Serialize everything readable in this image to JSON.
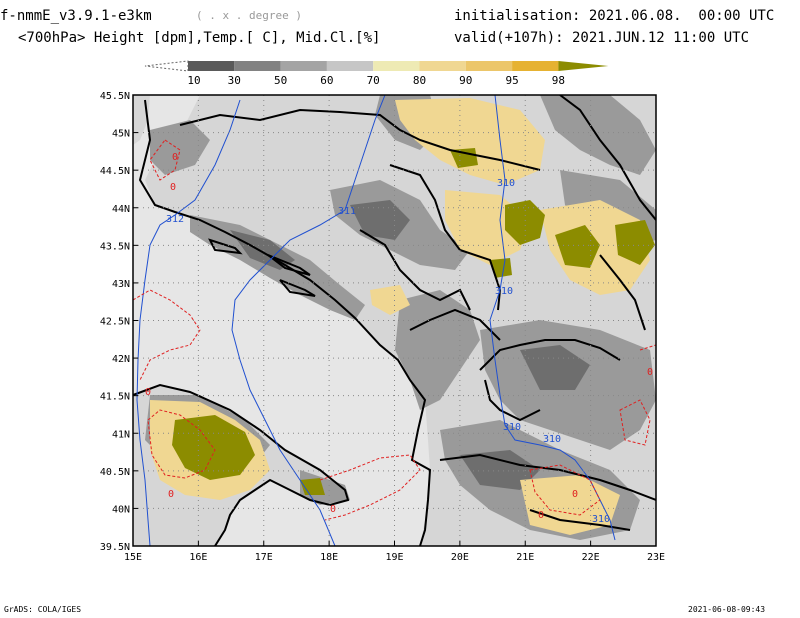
{
  "header": {
    "model": "f-nmmE_v3.9.1-e3km",
    "unit": "( . x . degree )",
    "field": "<700hPa> Height [dpm],Temp.[ C], Mid.Cl.[%]",
    "init": "initialisation: 2021.06.08.  00:00 UTC",
    "valid": "valid(+107h): 2021.JUN.12 11:00 UTC"
  },
  "colorbar": {
    "labels": [
      "10",
      "30",
      "50",
      "60",
      "70",
      "80",
      "90",
      "95",
      "98"
    ],
    "colors": [
      "#5a5a5a",
      "#828282",
      "#a4a4a4",
      "#c6c6c6",
      "#eeeab4",
      "#f0d792",
      "#ecc66a",
      "#e6b232",
      "#8c8c00"
    ]
  },
  "map": {
    "lat_labels": [
      "45.5N",
      "45N",
      "44.5N",
      "44N",
      "43.5N",
      "43N",
      "42.5N",
      "42N",
      "41.5N",
      "41N",
      "40.5N",
      "40N",
      "39.5N"
    ],
    "lon_labels": [
      "15E",
      "16E",
      "17E",
      "18E",
      "19E",
      "20E",
      "21E",
      "22E",
      "23E"
    ],
    "contour_labels": [
      "310",
      "310",
      "310",
      "310",
      "310",
      "311",
      "312",
      "0",
      "0",
      "0",
      "0",
      "0",
      "0",
      "0",
      "0"
    ],
    "colors": {
      "sea": "#e6e6e6",
      "land": "#d6d6d6",
      "height_contour": "#2050d0",
      "temp_contour": "#e02020",
      "border": "#000000"
    }
  },
  "footer": {
    "left": "GrADS: COLA/IGES",
    "right": "2021-06-08-09:43"
  }
}
